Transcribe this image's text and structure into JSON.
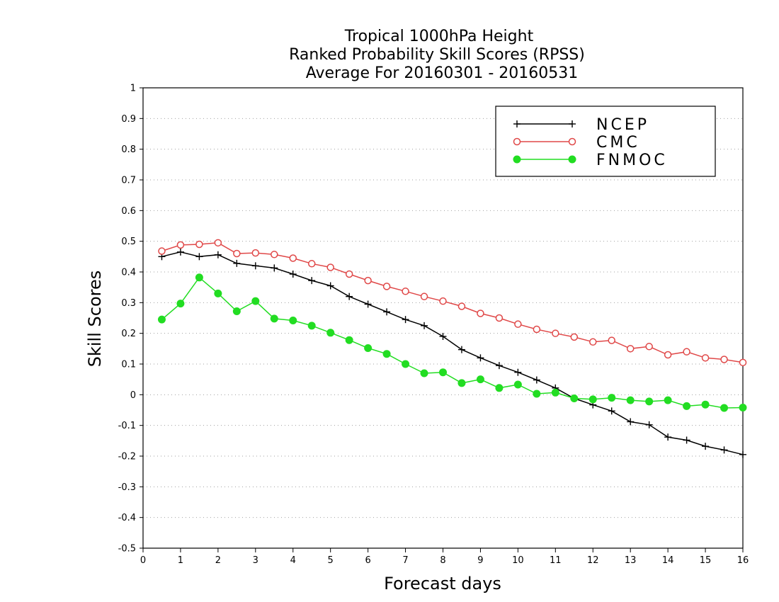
{
  "chart": {
    "title_lines": [
      "Tropical 1000hPa Height",
      "Ranked Probability Skill Scores (RPSS)",
      "Average For 20160301 - 20160531"
    ]
  },
  "colors": {
    "NCEP": "#000000",
    "CMC": "#e04848",
    "FNMOC": "#22dd22",
    "grid": "#a0a0a0"
  },
  "chart_data": {
    "type": "line",
    "title": "Tropical 1000hPa Height Ranked Probability Skill Scores (RPSS) Average For 20160301 - 20160531",
    "xlabel": "Forecast days",
    "ylabel": "Skill Scores",
    "xlim": [
      0,
      16
    ],
    "ylim": [
      -0.5,
      1
    ],
    "xticks": [
      0,
      1,
      2,
      3,
      4,
      5,
      6,
      7,
      8,
      9,
      10,
      11,
      12,
      13,
      14,
      15,
      16
    ],
    "yticks": [
      -0.5,
      -0.4,
      -0.3,
      -0.2,
      -0.1,
      0,
      0.1,
      0.2,
      0.3,
      0.4,
      0.5,
      0.6,
      0.7,
      0.8,
      0.9,
      1
    ],
    "ytick_labels": [
      "-0.5",
      "-0.4",
      "-0.3",
      "-0.2",
      "-0.1",
      "0",
      "0.1",
      "0.2",
      "0.3",
      "0.4",
      "0.5",
      "0.6",
      "0.7",
      "0.8",
      "0.9",
      "1"
    ],
    "grid": "horizontal dotted",
    "legend_position": "top-right",
    "x": [
      0.5,
      1,
      1.5,
      2,
      2.5,
      3,
      3.5,
      4,
      4.5,
      5,
      5.5,
      6,
      6.5,
      7,
      7.5,
      8,
      8.5,
      9,
      9.5,
      10,
      10.5,
      11,
      11.5,
      12,
      12.5,
      13,
      13.5,
      14,
      14.5,
      15,
      15.5,
      16
    ],
    "series": [
      {
        "name": "NCEP",
        "marker": "plus",
        "values": [
          0.45,
          0.465,
          0.45,
          0.456,
          0.428,
          0.42,
          0.413,
          0.393,
          0.372,
          0.355,
          0.32,
          0.295,
          0.27,
          0.245,
          0.225,
          0.19,
          0.147,
          0.12,
          0.095,
          0.073,
          0.048,
          0.022,
          -0.012,
          -0.033,
          -0.053,
          -0.088,
          -0.098,
          -0.138,
          -0.148,
          -0.168,
          -0.18,
          -0.195
        ]
      },
      {
        "name": "CMC",
        "marker": "open-circle",
        "values": [
          0.468,
          0.488,
          0.49,
          0.495,
          0.46,
          0.462,
          0.457,
          0.445,
          0.427,
          0.415,
          0.393,
          0.372,
          0.353,
          0.337,
          0.32,
          0.305,
          0.288,
          0.265,
          0.25,
          0.23,
          0.213,
          0.2,
          0.188,
          0.172,
          0.177,
          0.15,
          0.157,
          0.13,
          0.14,
          0.12,
          0.115,
          0.105
        ]
      },
      {
        "name": "FNMOC",
        "marker": "filled-circle",
        "values": [
          0.245,
          0.297,
          0.382,
          0.33,
          0.272,
          0.305,
          0.248,
          0.242,
          0.225,
          0.202,
          0.178,
          0.152,
          0.133,
          0.1,
          0.07,
          0.073,
          0.038,
          0.05,
          0.022,
          0.033,
          0.003,
          0.007,
          -0.012,
          -0.015,
          -0.01,
          -0.018,
          -0.022,
          -0.018,
          -0.037,
          -0.032,
          -0.043,
          -0.042
        ]
      }
    ]
  }
}
